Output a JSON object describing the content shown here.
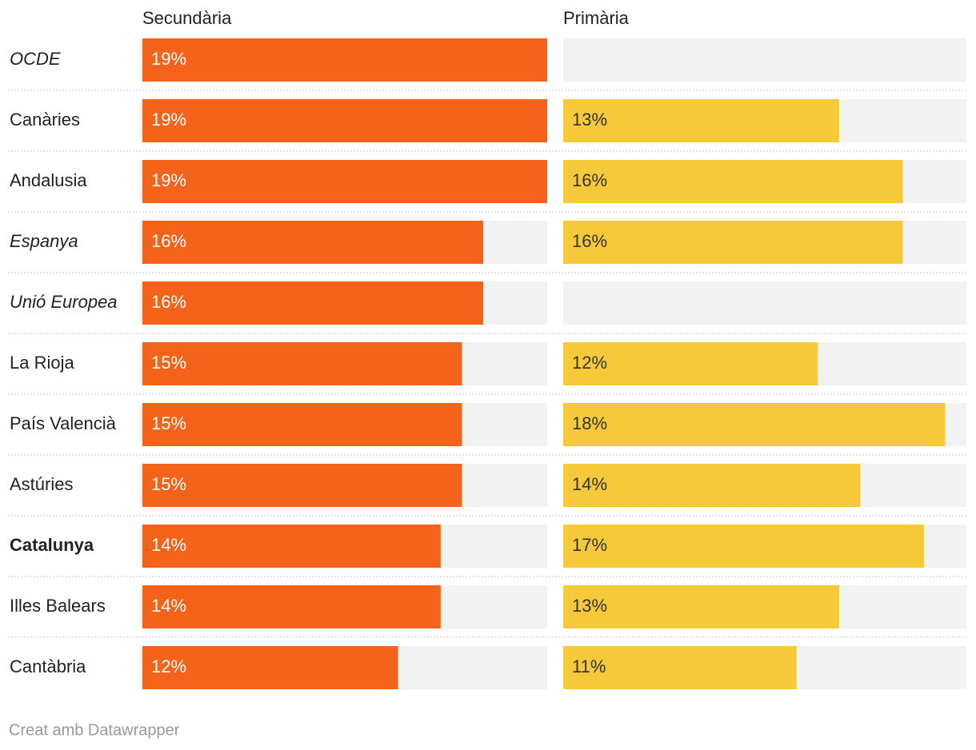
{
  "chart_data": {
    "type": "bar",
    "categories": [
      "OCDE",
      "Canàries",
      "Andalusia",
      "Espanya",
      "Unió Europea",
      "La Rioja",
      "País Valencià",
      "Astúries",
      "Catalunya",
      "Illes Balears",
      "Cantàbria"
    ],
    "category_styles": [
      "italic",
      "normal",
      "normal",
      "italic",
      "italic",
      "normal",
      "normal",
      "normal",
      "bold",
      "normal",
      "normal"
    ],
    "series": [
      {
        "name": "Secundària",
        "color": "#f5631a",
        "label_color": "#ffffff",
        "values": [
          19,
          19,
          19,
          16,
          16,
          15,
          15,
          15,
          14,
          14,
          12
        ],
        "value_labels": [
          "19%",
          "19%",
          "19%",
          "16%",
          "16%",
          "15%",
          "15%",
          "15%",
          "14%",
          "14%",
          "12%"
        ]
      },
      {
        "name": "Primària",
        "color": "#f5c93a",
        "label_color": "#333333",
        "values": [
          null,
          13,
          16,
          16,
          null,
          12,
          18,
          14,
          17,
          13,
          11
        ],
        "value_labels": [
          null,
          "13%",
          "16%",
          "16%",
          null,
          "12%",
          "18%",
          "14%",
          "17%",
          "13%",
          "11%"
        ]
      }
    ],
    "xlim": [
      0,
      19
    ],
    "footer": "Creat amb Datawrapper"
  }
}
